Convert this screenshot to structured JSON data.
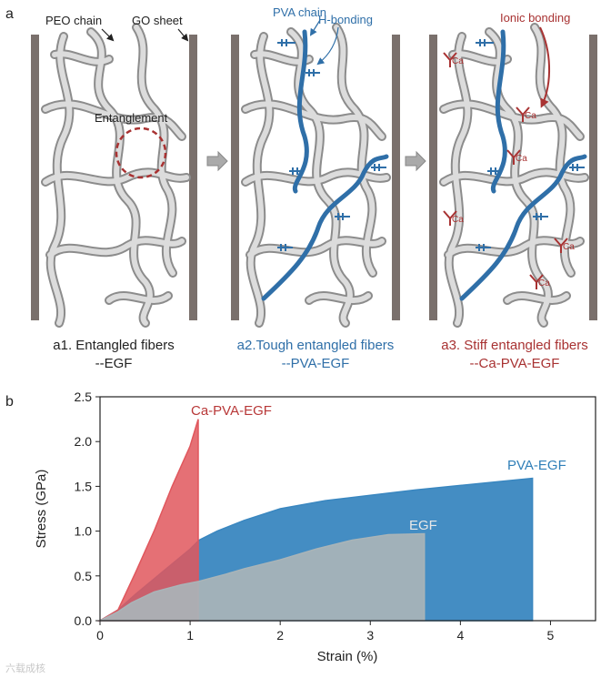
{
  "panel_a": {
    "label": "a",
    "annotations": {
      "peo_chain": "PEO chain",
      "go_sheet": "GO sheet",
      "entanglement": "Entanglement",
      "pva_chain": "PVA chain",
      "h_bonding": "H-bonding",
      "ionic_bonding": "Ionic bonding"
    },
    "ion_label": "Ca",
    "captions": [
      {
        "line1": "a1. Entangled fibers",
        "line2": "--EGF"
      },
      {
        "line1": "a2.Tough entangled fibers",
        "line2": "--PVA-EGF"
      },
      {
        "line1": "a3. Stiff entangled fibers",
        "line2": "--Ca-PVA-EGF"
      }
    ],
    "colors": {
      "peo": "#c8c8c8",
      "go": "#7a706c",
      "pva": "#2f6fa8",
      "ca": "#a83232",
      "text": "#222222"
    }
  },
  "panel_b": {
    "label": "b",
    "xlabel": "Strain (%)",
    "ylabel": "Stress (GPa)",
    "watermark": "六载成核"
  },
  "chart_data": {
    "type": "area",
    "xlabel": "Strain (%)",
    "ylabel": "Stress (GPa)",
    "xlim": [
      0,
      5.5
    ],
    "ylim": [
      0,
      2.5
    ],
    "xticks": [
      0,
      1,
      2,
      3,
      4,
      5
    ],
    "yticks": [
      0.0,
      0.5,
      1.0,
      1.5,
      2.0,
      2.5
    ],
    "grid": false,
    "series": [
      {
        "name": "EGF",
        "color": "#a9b4b8",
        "x": [
          0,
          0.2,
          0.35,
          0.6,
          0.9,
          1.1,
          1.4,
          1.6,
          2.0,
          2.4,
          2.8,
          3.2,
          3.6
        ],
        "y": [
          0,
          0.1,
          0.2,
          0.32,
          0.4,
          0.44,
          0.52,
          0.58,
          0.68,
          0.8,
          0.9,
          0.96,
          0.97
        ]
      },
      {
        "name": "PVA-EGF",
        "color": "#3a87c0",
        "x": [
          0,
          0.2,
          0.4,
          0.7,
          1.0,
          1.1,
          1.3,
          1.6,
          2.0,
          2.5,
          3.0,
          3.5,
          4.0,
          4.5,
          4.8
        ],
        "y": [
          0,
          0.12,
          0.3,
          0.55,
          0.8,
          0.9,
          1.0,
          1.12,
          1.25,
          1.34,
          1.4,
          1.46,
          1.51,
          1.56,
          1.59
        ]
      },
      {
        "name": "Ca-PVA-EGF",
        "color": "#e0575d",
        "x": [
          0,
          0.2,
          0.4,
          0.6,
          0.8,
          1.0,
          1.09
        ],
        "y": [
          0,
          0.12,
          0.55,
          1.0,
          1.5,
          1.95,
          2.25
        ]
      }
    ]
  }
}
